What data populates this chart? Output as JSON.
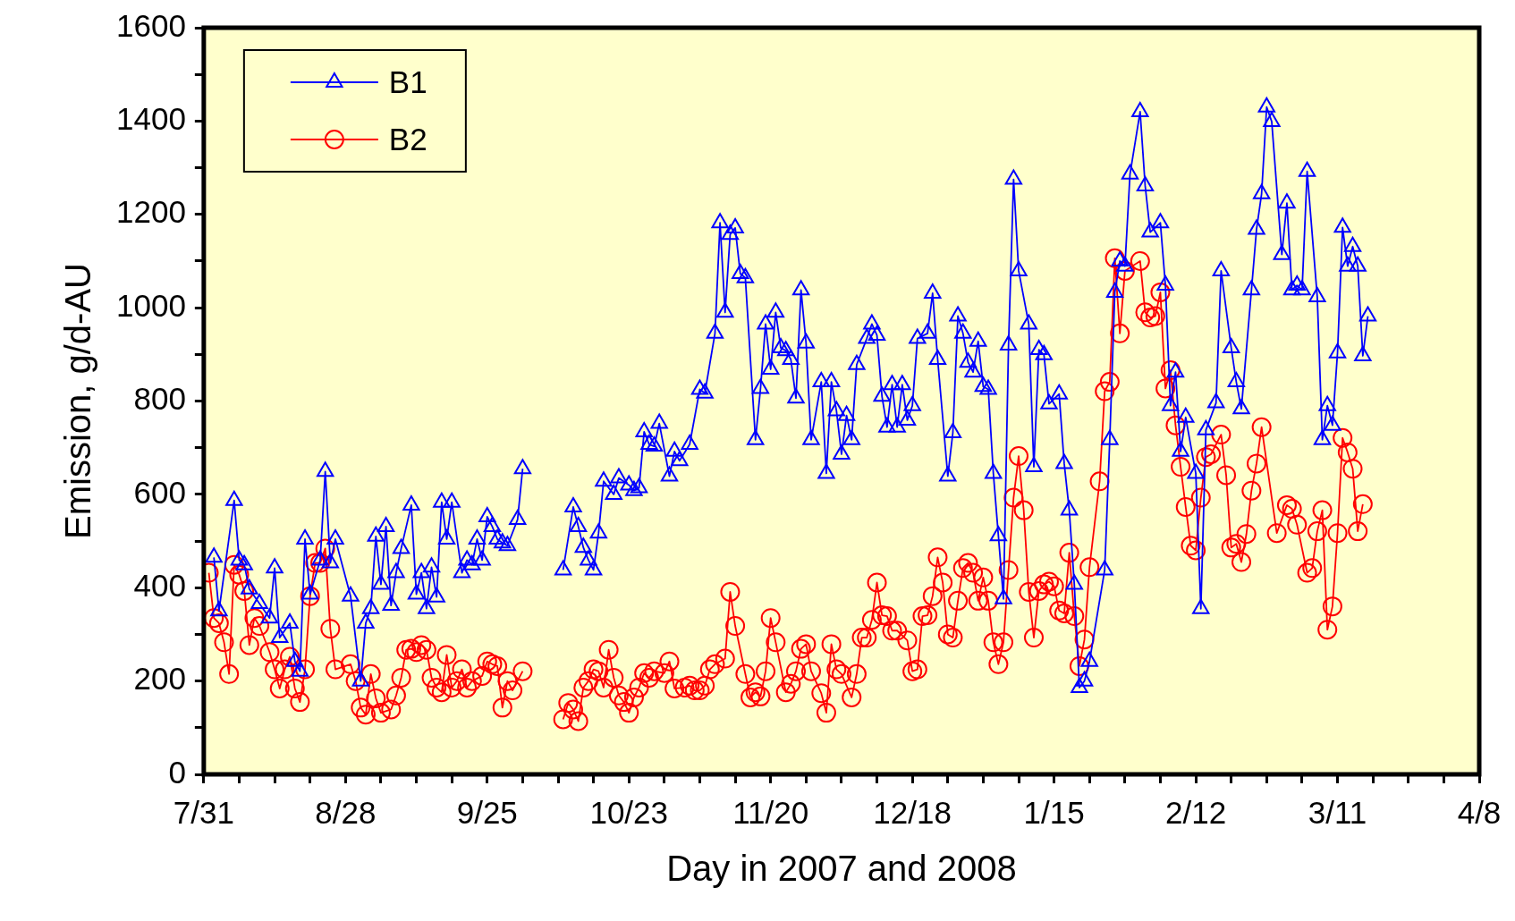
{
  "chart_data": {
    "type": "line",
    "xlabel": "Day in 2007 and 2008",
    "ylabel": "Emission, g/d-AU",
    "xlim": [
      "2007-07-31",
      "2008-04-08"
    ],
    "xticks": [
      {
        "value": "2007-07-31",
        "label": "7/31"
      },
      {
        "value": "2007-08-07",
        "label": null
      },
      {
        "value": "2007-08-14",
        "label": null
      },
      {
        "value": "2007-08-21",
        "label": null
      },
      {
        "value": "2007-08-28",
        "label": "8/28"
      },
      {
        "value": "2007-09-04",
        "label": null
      },
      {
        "value": "2007-09-11",
        "label": null
      },
      {
        "value": "2007-09-18",
        "label": null
      },
      {
        "value": "2007-09-25",
        "label": "9/25"
      },
      {
        "value": "2007-10-02",
        "label": null
      },
      {
        "value": "2007-10-09",
        "label": null
      },
      {
        "value": "2007-10-16",
        "label": null
      },
      {
        "value": "2007-10-23",
        "label": "10/23"
      },
      {
        "value": "2007-10-30",
        "label": null
      },
      {
        "value": "2007-11-06",
        "label": null
      },
      {
        "value": "2007-11-13",
        "label": null
      },
      {
        "value": "2007-11-20",
        "label": "11/20"
      },
      {
        "value": "2007-11-27",
        "label": null
      },
      {
        "value": "2007-12-04",
        "label": null
      },
      {
        "value": "2007-12-11",
        "label": null
      },
      {
        "value": "2007-12-18",
        "label": "12/18"
      },
      {
        "value": "2007-12-25",
        "label": null
      },
      {
        "value": "2008-01-01",
        "label": null
      },
      {
        "value": "2008-01-08",
        "label": null
      },
      {
        "value": "2008-01-15",
        "label": "1/15"
      },
      {
        "value": "2008-01-22",
        "label": null
      },
      {
        "value": "2008-01-29",
        "label": null
      },
      {
        "value": "2008-02-05",
        "label": null
      },
      {
        "value": "2008-02-12",
        "label": "2/12"
      },
      {
        "value": "2008-02-19",
        "label": null
      },
      {
        "value": "2008-02-26",
        "label": null
      },
      {
        "value": "2008-03-04",
        "label": null
      },
      {
        "value": "2008-03-11",
        "label": "3/11"
      },
      {
        "value": "2008-03-18",
        "label": null
      },
      {
        "value": "2008-03-25",
        "label": null
      },
      {
        "value": "2008-04-01",
        "label": null
      },
      {
        "value": "2008-04-08",
        "label": "4/8"
      }
    ],
    "ylim": [
      0,
      1600
    ],
    "yticks": [
      0,
      {
        "value": 100,
        "label": null
      },
      200,
      {
        "value": 300,
        "label": null
      },
      400,
      {
        "value": 500,
        "label": null
      },
      600,
      {
        "value": 700,
        "label": null
      },
      800,
      {
        "value": 900,
        "label": null
      },
      1000,
      {
        "value": 1100,
        "label": null
      },
      1200,
      {
        "value": 1300,
        "label": null
      },
      1400,
      {
        "value": 1500,
        "label": null
      },
      1600
    ],
    "grid": false,
    "legend": "top left",
    "line_style": "solid",
    "series": [
      {
        "name": "B1",
        "color": "#0000ff",
        "marker": "triangle",
        "x": [
          "2007-08-02",
          "2007-08-03",
          "2007-08-06",
          "2007-08-07",
          "2007-08-08",
          "2007-08-09",
          "2007-08-11",
          "2007-08-13",
          "2007-08-14",
          "2007-08-15",
          "2007-08-17",
          "2007-08-18",
          "2007-08-19",
          "2007-08-20",
          "2007-08-21",
          "2007-08-23",
          "2007-08-24",
          "2007-08-25",
          "2007-08-26",
          "2007-08-29",
          "2007-08-31",
          "2007-09-01",
          "2007-09-02",
          "2007-09-03",
          "2007-09-04",
          "2007-09-05",
          "2007-09-06",
          "2007-09-07",
          "2007-09-08",
          "2007-09-10",
          "2007-09-11",
          "2007-09-12",
          "2007-09-13",
          "2007-09-14",
          "2007-09-15",
          "2007-09-16",
          "2007-09-17",
          "2007-09-18",
          "2007-09-20",
          "2007-09-21",
          "2007-09-22",
          "2007-09-23",
          "2007-09-24",
          "2007-09-25",
          "2007-09-26",
          "2007-09-27",
          "2007-09-28",
          "2007-09-29",
          "2007-10-01",
          "2007-10-02",
          "2007-10-06",
          "2007-10-10",
          "2007-10-12",
          "2007-10-13",
          "2007-10-14",
          "2007-10-15",
          "2007-10-16",
          "2007-10-17",
          "2007-10-18",
          "2007-10-20",
          "2007-10-21",
          "2007-10-23",
          "2007-10-24",
          "2007-10-25",
          "2007-10-26",
          "2007-10-27",
          "2007-10-28",
          "2007-10-29",
          "2007-10-31",
          "2007-11-01",
          "2007-11-02",
          "2007-11-04",
          "2007-11-06",
          "2007-11-07",
          "2007-11-09",
          "2007-11-10",
          "2007-11-11",
          "2007-11-12",
          "2007-11-13",
          "2007-11-14",
          "2007-11-15",
          "2007-11-17",
          "2007-11-18",
          "2007-11-19",
          "2007-11-20",
          "2007-11-21",
          "2007-11-22",
          "2007-11-23",
          "2007-11-24",
          "2007-11-25",
          "2007-11-26",
          "2007-11-27",
          "2007-11-28",
          "2007-11-30",
          "2007-12-01",
          "2007-12-02",
          "2007-12-03",
          "2007-12-04",
          "2007-12-05",
          "2007-12-06",
          "2007-12-07",
          "2007-12-09",
          "2007-12-10",
          "2007-12-11",
          "2007-12-12",
          "2007-12-13",
          "2007-12-14",
          "2007-12-15",
          "2007-12-16",
          "2007-12-17",
          "2007-12-18",
          "2007-12-19",
          "2007-12-21",
          "2007-12-22",
          "2007-12-23",
          "2007-12-25",
          "2007-12-26",
          "2007-12-27",
          "2007-12-28",
          "2007-12-29",
          "2007-12-30",
          "2007-12-31",
          "2008-01-01",
          "2008-01-02",
          "2008-01-03",
          "2008-01-04",
          "2008-01-05",
          "2008-01-06",
          "2008-01-07",
          "2008-01-08",
          "2008-01-10",
          "2008-01-11",
          "2008-01-12",
          "2008-01-13",
          "2008-01-14",
          "2008-01-16",
          "2008-01-17",
          "2008-01-18",
          "2008-01-19",
          "2008-01-20",
          "2008-01-21",
          "2008-01-22",
          "2008-01-25",
          "2008-01-26",
          "2008-01-27",
          "2008-01-28",
          "2008-01-29",
          "2008-01-30",
          "2008-02-01",
          "2008-02-02",
          "2008-02-03",
          "2008-02-05",
          "2008-02-06",
          "2008-02-07",
          "2008-02-08",
          "2008-02-09",
          "2008-02-10",
          "2008-02-12",
          "2008-02-13",
          "2008-02-14",
          "2008-02-16",
          "2008-02-17",
          "2008-02-19",
          "2008-02-20",
          "2008-02-21",
          "2008-02-23",
          "2008-02-24",
          "2008-02-25",
          "2008-02-26",
          "2008-02-27",
          "2008-02-29",
          "2008-03-01",
          "2008-03-02",
          "2008-03-03",
          "2008-03-04",
          "2008-03-05",
          "2008-03-07",
          "2008-03-08",
          "2008-03-09",
          "2008-03-10",
          "2008-03-11",
          "2008-03-12",
          "2008-03-13",
          "2008-03-14",
          "2008-03-15",
          "2008-03-16",
          "2008-03-17"
        ],
        "values": [
          465,
          350,
          587,
          459,
          449,
          397,
          366,
          335,
          442,
          293,
          324,
          242,
          221,
          504,
          386,
          459,
          649,
          453,
          504,
          382,
          200,
          324,
          355,
          510,
          407,
          531,
          362,
          432,
          484,
          577,
          386,
          432,
          355,
          444,
          380,
          583,
          504,
          583,
          432,
          459,
          449,
          504,
          459,
          552,
          531,
          504,
          496,
          490,
          546,
          655,
          null,
          438,
          573,
          531,
          486,
          459,
          438,
          517,
          628,
          600,
          635,
          620,
          608,
          614,
          734,
          707,
          703,
          752,
          639,
          692,
          672,
          707,
          825,
          817,
          945,
          1182,
          990,
          1157,
          1171,
          1073,
          1064,
          717,
          827,
          965,
          868,
          990,
          914,
          908,
          889,
          806,
          1038,
          924,
          717,
          841,
          645,
          841,
          779,
          686,
          769,
          717,
          878,
          934,
          965,
          941,
          810,
          744,
          835,
          744,
          835,
          759,
          790,
          934,
          945,
          1031,
          889,
          639,
          732,
          982,
          945,
          883,
          862,
          928,
          831,
          825,
          645,
          511,
          376,
          920,
          1275,
          1079,
          965,
          659,
          910,
          899,
          794,
          815,
          666,
          566,
          407,
          186,
          200,
          242,
          438,
          717,
          1033,
          1100,
          1089,
          1286,
          1420,
          1261,
          1162,
          1182,
          1048,
          790,
          862,
          692,
          765,
          645,
          355,
          738,
          796,
          1079,
          914,
          841,
          783,
          1038,
          1168,
          1244,
          1430,
          1399,
          1114,
          1224,
          1038,
          1048,
          1038,
          1292,
          1023,
          717,
          790,
          748,
          903,
          1172,
          1089,
          1131,
          1089,
          897,
          982
        ]
      },
      {
        "name": "B2",
        "color": "#ff0000",
        "marker": "circle",
        "x": [
          "2007-08-01",
          "2007-08-02",
          "2007-08-03",
          "2007-08-04",
          "2007-08-05",
          "2007-08-06",
          "2007-08-07",
          "2007-08-08",
          "2007-08-09",
          "2007-08-10",
          "2007-08-11",
          "2007-08-13",
          "2007-08-14",
          "2007-08-15",
          "2007-08-16",
          "2007-08-17",
          "2007-08-18",
          "2007-08-19",
          "2007-08-20",
          "2007-08-21",
          "2007-08-22",
          "2007-08-23",
          "2007-08-24",
          "2007-08-25",
          "2007-08-26",
          "2007-08-29",
          "2007-08-30",
          "2007-08-31",
          "2007-09-01",
          "2007-09-02",
          "2007-09-03",
          "2007-09-04",
          "2007-09-06",
          "2007-09-07",
          "2007-09-08",
          "2007-09-09",
          "2007-09-10",
          "2007-09-11",
          "2007-09-12",
          "2007-09-13",
          "2007-09-14",
          "2007-09-15",
          "2007-09-16",
          "2007-09-17",
          "2007-09-18",
          "2007-09-19",
          "2007-09-20",
          "2007-09-21",
          "2007-09-22",
          "2007-09-24",
          "2007-09-25",
          "2007-09-26",
          "2007-09-27",
          "2007-09-28",
          "2007-09-29",
          "2007-09-30",
          "2007-10-02",
          "2007-10-06",
          "2007-10-10",
          "2007-10-11",
          "2007-10-12",
          "2007-10-13",
          "2007-10-14",
          "2007-10-15",
          "2007-10-16",
          "2007-10-17",
          "2007-10-18",
          "2007-10-19",
          "2007-10-20",
          "2007-10-21",
          "2007-10-22",
          "2007-10-23",
          "2007-10-24",
          "2007-10-25",
          "2007-10-26",
          "2007-10-27",
          "2007-10-28",
          "2007-10-30",
          "2007-10-31",
          "2007-11-01",
          "2007-11-03",
          "2007-11-04",
          "2007-11-05",
          "2007-11-06",
          "2007-11-07",
          "2007-11-08",
          "2007-11-09",
          "2007-11-11",
          "2007-11-12",
          "2007-11-13",
          "2007-11-15",
          "2007-11-16",
          "2007-11-17",
          "2007-11-18",
          "2007-11-19",
          "2007-11-20",
          "2007-11-21",
          "2007-11-23",
          "2007-11-24",
          "2007-11-25",
          "2007-11-26",
          "2007-11-27",
          "2007-11-28",
          "2007-11-30",
          "2007-12-01",
          "2007-12-02",
          "2007-12-03",
          "2007-12-04",
          "2007-12-06",
          "2007-12-07",
          "2007-12-08",
          "2007-12-09",
          "2007-12-10",
          "2007-12-11",
          "2007-12-12",
          "2007-12-13",
          "2007-12-14",
          "2007-12-15",
          "2007-12-17",
          "2007-12-18",
          "2007-12-19",
          "2007-12-20",
          "2007-12-21",
          "2007-12-22",
          "2007-12-23",
          "2007-12-24",
          "2007-12-25",
          "2007-12-26",
          "2007-12-27",
          "2007-12-28",
          "2007-12-29",
          "2007-12-30",
          "2007-12-31",
          "2008-01-01",
          "2008-01-02",
          "2008-01-03",
          "2008-01-04",
          "2008-01-05",
          "2008-01-06",
          "2008-01-07",
          "2008-01-08",
          "2008-01-09",
          "2008-01-10",
          "2008-01-11",
          "2008-01-12",
          "2008-01-13",
          "2008-01-14",
          "2008-01-15",
          "2008-01-16",
          "2008-01-17",
          "2008-01-18",
          "2008-01-19",
          "2008-01-20",
          "2008-01-21",
          "2008-01-22",
          "2008-01-24",
          "2008-01-25",
          "2008-01-26",
          "2008-01-27",
          "2008-01-28",
          "2008-01-29",
          "2008-02-01",
          "2008-02-02",
          "2008-02-03",
          "2008-02-04",
          "2008-02-05",
          "2008-02-06",
          "2008-02-07",
          "2008-02-08",
          "2008-02-09",
          "2008-02-10",
          "2008-02-11",
          "2008-02-12",
          "2008-02-13",
          "2008-02-14",
          "2008-02-15",
          "2008-02-17",
          "2008-02-18",
          "2008-02-19",
          "2008-02-20",
          "2008-02-21",
          "2008-02-22",
          "2008-02-23",
          "2008-02-24",
          "2008-02-25",
          "2008-02-28",
          "2008-03-01",
          "2008-03-02",
          "2008-03-03",
          "2008-03-05",
          "2008-03-06",
          "2008-03-07",
          "2008-03-08",
          "2008-03-09",
          "2008-03-10",
          "2008-03-11",
          "2008-03-12",
          "2008-03-13",
          "2008-03-14",
          "2008-03-15",
          "2008-03-16"
        ],
        "values": [
          432,
          335,
          324,
          283,
          215,
          449,
          428,
          393,
          277,
          335,
          318,
          262,
          225,
          184,
          225,
          252,
          184,
          155,
          225,
          382,
          453,
          453,
          484,
          312,
          225,
          236,
          200,
          143,
          128,
          215,
          163,
          132,
          139,
          169,
          207,
          267,
          269,
          262,
          277,
          267,
          207,
          186,
          176,
          256,
          186,
          200,
          225,
          186,
          200,
          211,
          242,
          236,
          232,
          143,
          200,
          180,
          221,
          null,
          118,
          153,
          139,
          114,
          186,
          200,
          225,
          221,
          186,
          267,
          207,
          169,
          155,
          132,
          165,
          186,
          217,
          207,
          221,
          217,
          242,
          184,
          186,
          190,
          180,
          180,
          190,
          225,
          236,
          248,
          391,
          318,
          215,
          165,
          176,
          167,
          221,
          335,
          283,
          176,
          194,
          221,
          269,
          279,
          221,
          174,
          132,
          279,
          225,
          215,
          165,
          215,
          293,
          293,
          331,
          411,
          341,
          339,
          308,
          308,
          287,
          221,
          225,
          339,
          341,
          382,
          465,
          411,
          300,
          293,
          372,
          442,
          453,
          432,
          372,
          422,
          372,
          283,
          236,
          283,
          438,
          593,
          682,
          566,
          391,
          293,
          393,
          407,
          413,
          403,
          351,
          345,
          475,
          339,
          232,
          289,
          444,
          628,
          821,
          841,
          1106,
          945,
          1079,
          1100,
          990,
          979,
          982,
          1033,
          827,
          866,
          748,
          659,
          573,
          490,
          480,
          593,
          680,
          686,
          728,
          641,
          486,
          494,
          455,
          515,
          608,
          666,
          744,
          517,
          577,
          569,
          535,
          432,
          442,
          521,
          566,
          310,
          360,
          517,
          721,
          690,
          655,
          521,
          579
        ]
      }
    ]
  }
}
